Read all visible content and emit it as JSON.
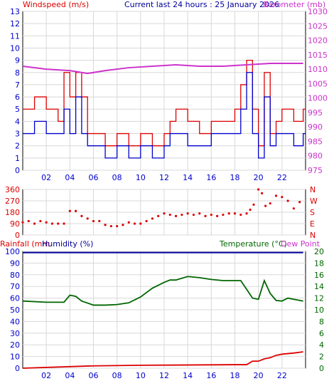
{
  "colors": {
    "wind": "#dd0000",
    "gust": "#dd0000",
    "wind_avg": "#0000cc",
    "baro": "#cc33cc",
    "dir": "#dd0000",
    "rain": "#dd0000",
    "humidity": "#000099",
    "temp": "#006600",
    "dew": "#cc33cc",
    "grid": "#d8d8d8",
    "axis_blue": "#0000cc",
    "axis_green": "#006600"
  },
  "chart_data": [
    {
      "type": "line",
      "labels": {
        "left": "Windspeed (m/s)",
        "center": "Current last 24 hours : 25 January 2026",
        "right": "Barometer (mb)"
      },
      "x_ticks": [
        "02",
        "04",
        "06",
        "08",
        "10",
        "12",
        "14",
        "16",
        "18",
        "20",
        "22"
      ],
      "ylim_left": [
        0,
        13
      ],
      "y_ticks_left": [
        "0",
        "1",
        "2",
        "3",
        "4",
        "5",
        "6",
        "7",
        "8",
        "9",
        "10",
        "11",
        "12",
        "13"
      ],
      "ylim_right": [
        975,
        1030
      ],
      "y_ticks_right": [
        "975",
        "980",
        "985",
        "990",
        "995",
        "1000",
        "1005",
        "1010",
        "1015",
        "1020",
        "1025",
        "1030"
      ],
      "x_hours": [
        0,
        1,
        2,
        3,
        3.5,
        4,
        4.5,
        5,
        5.5,
        6,
        7,
        8,
        9,
        10,
        11,
        12,
        12.5,
        13,
        14,
        15,
        16,
        17,
        18,
        18.5,
        19,
        19.5,
        20,
        20.5,
        21,
        21.5,
        22,
        23,
        23.8
      ],
      "gust": [
        5,
        6,
        5,
        4,
        8,
        6,
        8,
        6,
        3,
        3,
        2,
        3,
        2,
        3,
        2,
        3,
        4,
        5,
        4,
        3,
        4,
        4,
        5,
        7,
        9,
        5,
        2,
        8,
        3,
        4,
        5,
        4,
        5
      ],
      "wind_avg": [
        3,
        4,
        3,
        3,
        5,
        3,
        6,
        3,
        2,
        2,
        1,
        2,
        1,
        2,
        1,
        2,
        3,
        3,
        2,
        2,
        3,
        3,
        3,
        5,
        8,
        3,
        1,
        6,
        2,
        3,
        3,
        2,
        3
      ],
      "baro_x": [
        0,
        2,
        4,
        5.5,
        7,
        9,
        11,
        13,
        15,
        17,
        19,
        21,
        23.8
      ],
      "baro": [
        1011,
        1010,
        1009.5,
        1008.5,
        1009.5,
        1010.5,
        1011,
        1011.5,
        1011,
        1011,
        1011.5,
        1012,
        1012
      ]
    },
    {
      "type": "scatter",
      "series": [
        {
          "x": [
            0,
            0.5,
            1,
            1.5,
            2,
            2.5,
            3,
            3.5,
            4,
            4.5,
            5,
            5.5,
            6,
            6.5,
            7,
            7.5,
            8,
            8.5,
            9,
            9.5,
            10,
            10.5,
            11,
            11.5,
            12,
            12.5,
            13,
            13.5,
            14,
            14.5,
            15,
            15.5,
            16,
            16.5,
            17,
            17.5,
            18,
            18.5,
            19,
            19.3,
            19.6,
            20,
            20.3,
            20.6,
            21,
            21.5,
            22,
            22.5,
            23,
            23.5
          ],
          "y": [
            100,
            110,
            90,
            110,
            100,
            90,
            90,
            90,
            190,
            190,
            150,
            130,
            110,
            110,
            80,
            70,
            70,
            80,
            100,
            90,
            90,
            110,
            130,
            150,
            170,
            160,
            150,
            160,
            170,
            160,
            170,
            150,
            160,
            150,
            160,
            170,
            170,
            160,
            170,
            200,
            240,
            360,
            330,
            230,
            250,
            310,
            300,
            270,
            210,
            260
          ]
        }
      ],
      "ylim": [
        0,
        360
      ],
      "y_ticks_left": [
        "0",
        "90",
        "180",
        "270",
        "360"
      ],
      "y_ticks_right": [
        "N",
        "E",
        "S",
        "W",
        "N"
      ],
      "x_ticks": [
        "02",
        "04",
        "06",
        "08",
        "10",
        "12",
        "14",
        "16",
        "18",
        "20",
        "22"
      ]
    },
    {
      "type": "line",
      "labels": {
        "left_rain": "Rainfall (mm",
        "left_hum": "Humidity (%)",
        "right_temp": "Temperature (°C)",
        "right_dew": "Dew Point"
      },
      "ylim_left": [
        0,
        100
      ],
      "y_ticks_left": [
        "0",
        "10",
        "20",
        "30",
        "40",
        "50",
        "60",
        "70",
        "80",
        "90",
        "100"
      ],
      "ylim_right": [
        0,
        20
      ],
      "y_ticks_right": [
        "0",
        "2",
        "4",
        "6",
        "8",
        "10",
        "12",
        "14",
        "16",
        "18",
        "20"
      ],
      "x_ticks": [
        "02",
        "04",
        "06",
        "08",
        "10",
        "12",
        "14",
        "16",
        "18",
        "20",
        "22"
      ],
      "humidity_x": [
        0,
        23.8
      ],
      "humidity": [
        99,
        99
      ],
      "temp_x": [
        0,
        2,
        3.5,
        4,
        4.5,
        5,
        6,
        7,
        8,
        9,
        10,
        11,
        12,
        12.5,
        13,
        14,
        15,
        16,
        17,
        18,
        18.5,
        19,
        19.5,
        20,
        20.5,
        21,
        21.5,
        22,
        22.5,
        23,
        23.8
      ],
      "temp": [
        11.5,
        11.3,
        11.3,
        12.5,
        12.3,
        11.5,
        10.8,
        10.8,
        10.9,
        11.2,
        12.2,
        13.7,
        14.7,
        15.1,
        15.1,
        15.7,
        15.5,
        15.2,
        15.0,
        15.0,
        15.0,
        13.5,
        12.0,
        11.8,
        15.0,
        12.8,
        11.6,
        11.5,
        12.0,
        11.8,
        11.5
      ],
      "rain_x": [
        0,
        6,
        10,
        18,
        19,
        19.5,
        20,
        20.5,
        21,
        21.5,
        22,
        23,
        23.8
      ],
      "rain": [
        0,
        0.4,
        0.5,
        0.6,
        0.6,
        1.2,
        1.2,
        1.6,
        1.8,
        2.2,
        2.4,
        2.6,
        2.8
      ]
    }
  ]
}
